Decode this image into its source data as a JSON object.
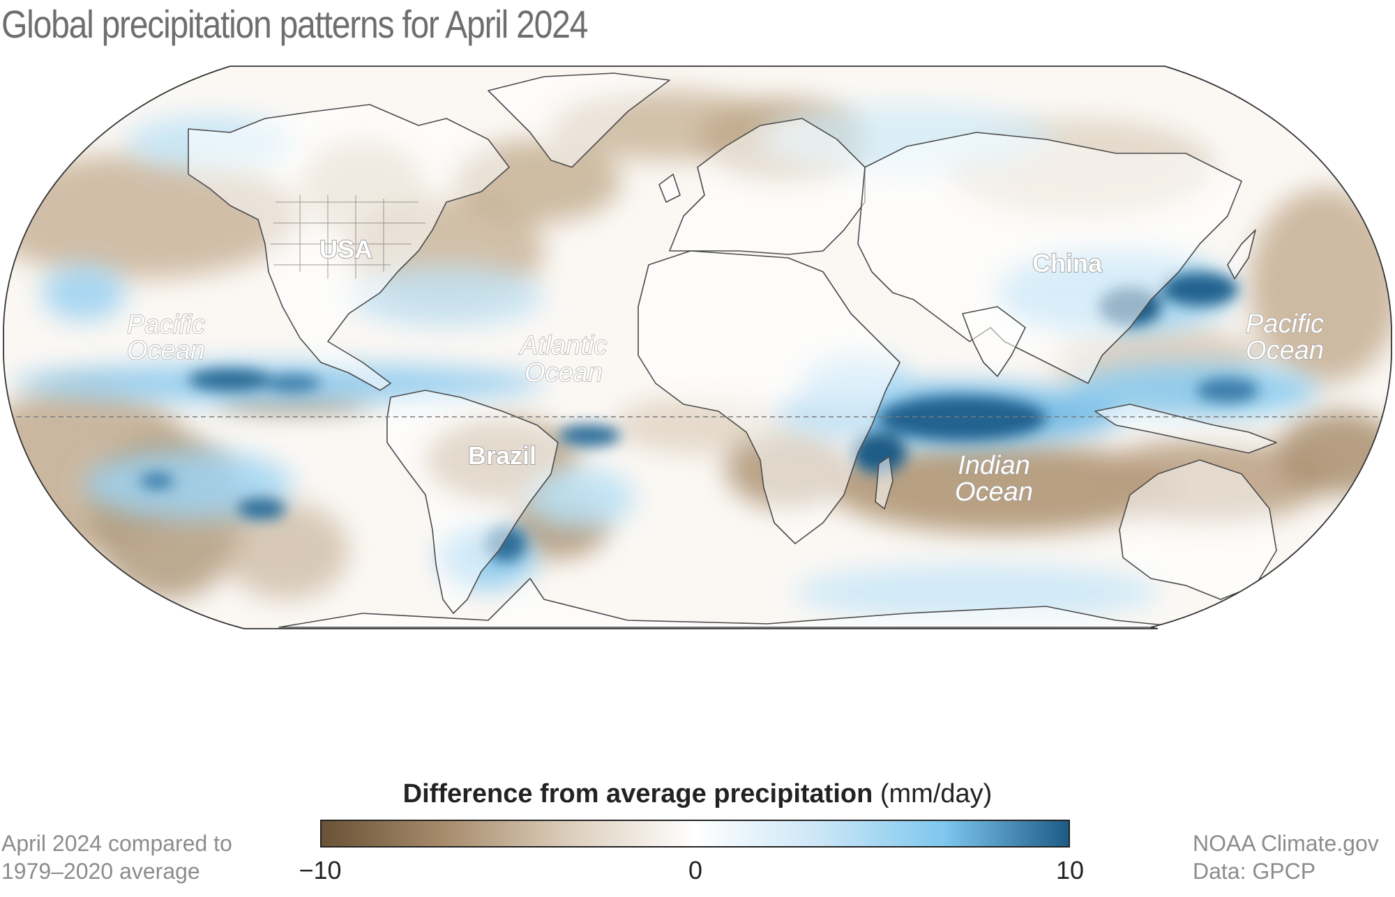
{
  "title": "Global precipitation patterns for April 2024",
  "map": {
    "projection": "Robinson",
    "region": "Global",
    "labels": {
      "pacific_west": [
        "Pacific",
        "Ocean"
      ],
      "atlantic": [
        "Atlantic",
        "Ocean"
      ],
      "indian": [
        "Indian",
        "Ocean"
      ],
      "pacific_east": [
        "Pacific",
        "Ocean"
      ],
      "usa": "USA",
      "china": "China",
      "brazil": "Brazil"
    },
    "colors": {
      "dry": "#6a5236",
      "dry_mid": "#a88d6d",
      "dry_light": "#ddcfbd",
      "neutral": "#ffffff",
      "wet_light": "#cbe6f7",
      "wet_mid": "#7ec7ee",
      "wet_strong": "#1d5b86",
      "outline": "#4a4a4a"
    }
  },
  "legend": {
    "title_bold": "Difference from average precipitation",
    "unit": "(mm/day)",
    "min_label": "−10",
    "mid_label": "0",
    "max_label": "10",
    "min": -10,
    "max": 10
  },
  "footnotes": {
    "left_line1": "April 2024 compared to",
    "left_line2": "1979–2020 average",
    "right_line1": "NOAA Climate.gov",
    "right_line2": "Data: GPCP"
  }
}
